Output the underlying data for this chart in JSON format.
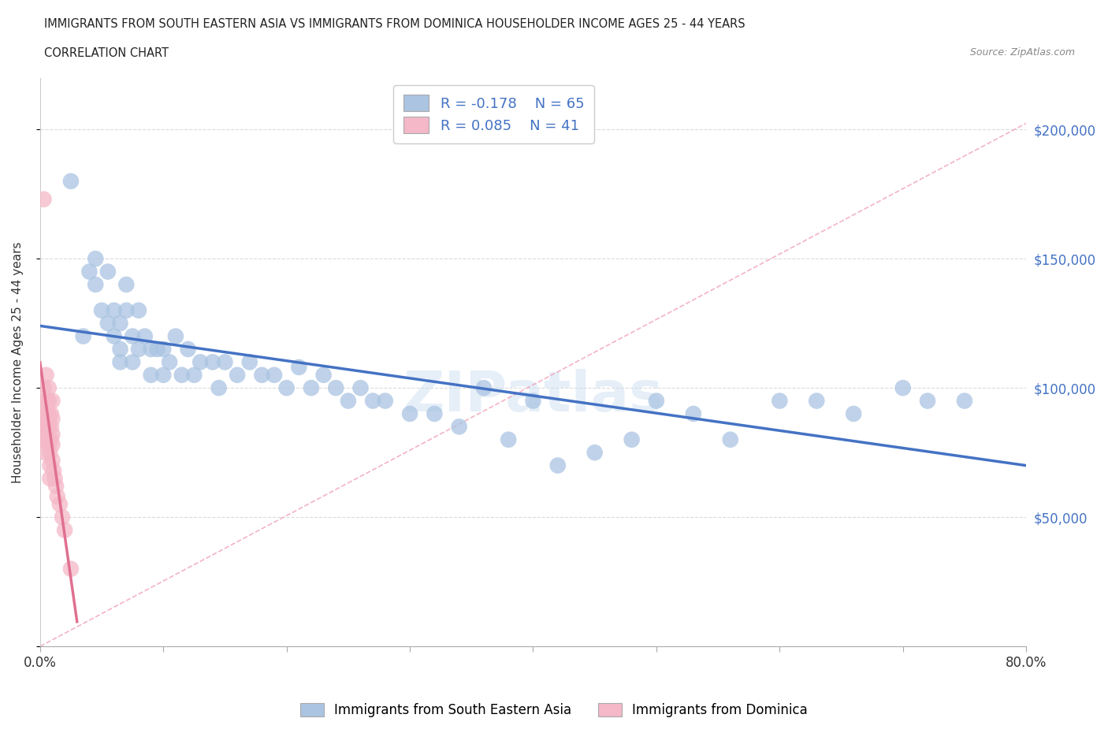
{
  "title_line1": "IMMIGRANTS FROM SOUTH EASTERN ASIA VS IMMIGRANTS FROM DOMINICA HOUSEHOLDER INCOME AGES 25 - 44 YEARS",
  "title_line2": "CORRELATION CHART",
  "source_text": "Source: ZipAtlas.com",
  "ylabel": "Householder Income Ages 25 - 44 years",
  "x_min": 0.0,
  "x_max": 0.8,
  "y_min": 0,
  "y_max": 220000,
  "x_ticks": [
    0.0,
    0.1,
    0.2,
    0.3,
    0.4,
    0.5,
    0.6,
    0.7,
    0.8
  ],
  "y_ticks": [
    0,
    50000,
    100000,
    150000,
    200000
  ],
  "y_tick_labels": [
    "",
    "$50,000",
    "$100,000",
    "$150,000",
    "$200,000"
  ],
  "r_blue": -0.178,
  "n_blue": 65,
  "r_pink": 0.085,
  "n_pink": 41,
  "legend_label_blue": "Immigrants from South Eastern Asia",
  "legend_label_pink": "Immigrants from Dominica",
  "blue_color": "#aac4e2",
  "blue_line_color": "#4472c4",
  "pink_color": "#f4b8c8",
  "pink_line_color": "#e07090",
  "diag_color": "#f4b8c8",
  "background_color": "#ffffff",
  "grid_color": "#cccccc",
  "watermark": "ZIPatlas",
  "scatter_blue_x": [
    0.025,
    0.035,
    0.04,
    0.045,
    0.045,
    0.05,
    0.055,
    0.055,
    0.06,
    0.06,
    0.065,
    0.065,
    0.065,
    0.07,
    0.07,
    0.075,
    0.075,
    0.08,
    0.08,
    0.085,
    0.09,
    0.09,
    0.095,
    0.1,
    0.1,
    0.105,
    0.11,
    0.115,
    0.12,
    0.125,
    0.13,
    0.14,
    0.145,
    0.15,
    0.16,
    0.17,
    0.18,
    0.19,
    0.2,
    0.21,
    0.22,
    0.23,
    0.24,
    0.25,
    0.26,
    0.27,
    0.28,
    0.3,
    0.32,
    0.34,
    0.36,
    0.38,
    0.4,
    0.42,
    0.45,
    0.48,
    0.5,
    0.53,
    0.56,
    0.6,
    0.63,
    0.66,
    0.7,
    0.72,
    0.75
  ],
  "scatter_blue_y": [
    180000,
    120000,
    145000,
    150000,
    140000,
    130000,
    145000,
    125000,
    130000,
    120000,
    115000,
    125000,
    110000,
    140000,
    130000,
    120000,
    110000,
    130000,
    115000,
    120000,
    115000,
    105000,
    115000,
    115000,
    105000,
    110000,
    120000,
    105000,
    115000,
    105000,
    110000,
    110000,
    100000,
    110000,
    105000,
    110000,
    105000,
    105000,
    100000,
    108000,
    100000,
    105000,
    100000,
    95000,
    100000,
    95000,
    95000,
    90000,
    90000,
    85000,
    100000,
    80000,
    95000,
    70000,
    75000,
    80000,
    95000,
    90000,
    80000,
    95000,
    95000,
    90000,
    100000,
    95000,
    95000
  ],
  "scatter_pink_x": [
    0.003,
    0.003,
    0.003,
    0.004,
    0.004,
    0.004,
    0.005,
    0.005,
    0.005,
    0.005,
    0.005,
    0.006,
    0.006,
    0.006,
    0.006,
    0.007,
    0.007,
    0.007,
    0.007,
    0.007,
    0.007,
    0.007,
    0.008,
    0.008,
    0.008,
    0.009,
    0.009,
    0.009,
    0.01,
    0.01,
    0.01,
    0.01,
    0.01,
    0.011,
    0.012,
    0.013,
    0.014,
    0.016,
    0.018,
    0.02,
    0.025
  ],
  "scatter_pink_y": [
    173000,
    100000,
    85000,
    90000,
    80000,
    75000,
    105000,
    95000,
    90000,
    85000,
    80000,
    95000,
    90000,
    85000,
    80000,
    100000,
    95000,
    90000,
    88000,
    85000,
    80000,
    78000,
    75000,
    70000,
    65000,
    90000,
    85000,
    80000,
    95000,
    88000,
    82000,
    78000,
    72000,
    68000,
    65000,
    62000,
    58000,
    55000,
    50000,
    45000,
    30000
  ]
}
